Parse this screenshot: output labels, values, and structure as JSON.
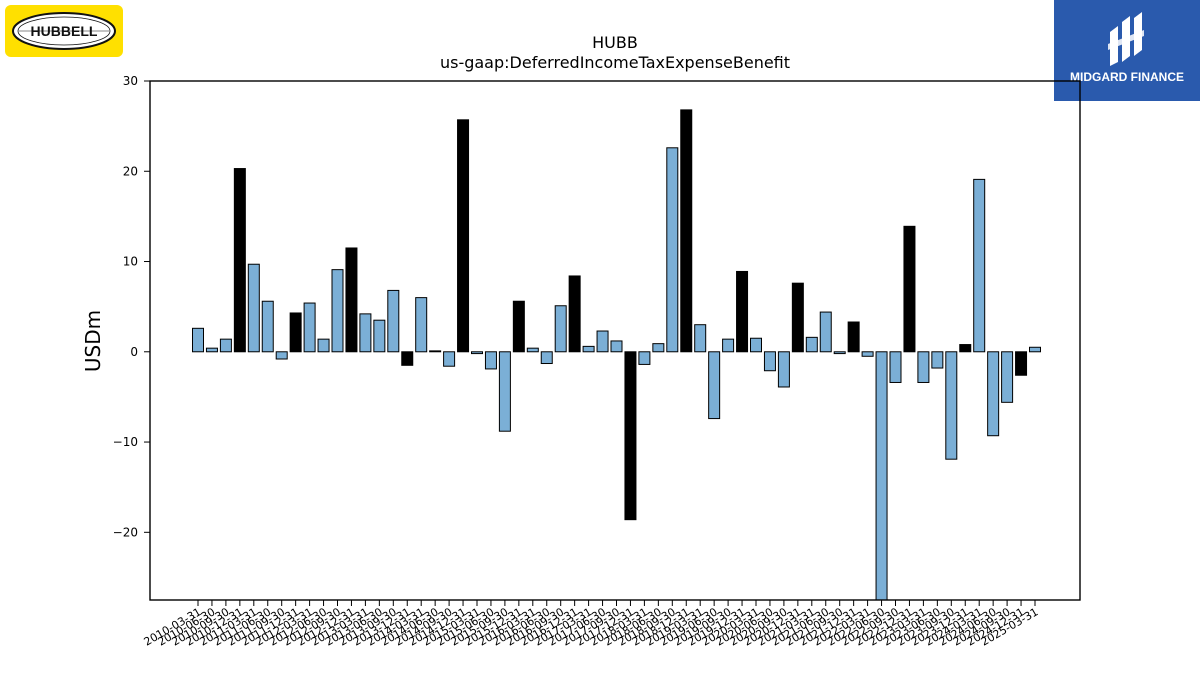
{
  "logos": {
    "left": {
      "text": "HUBBELL",
      "icon": "hubbell-oval-globe-logo",
      "bg_color": "#ffe000"
    },
    "right": {
      "text": "MIDGARD FINANCE",
      "icon": "midgard-rune-logo",
      "bg_color": "#2a5aad"
    }
  },
  "chart_data": {
    "type": "bar",
    "title": "HUBB",
    "subtitle": "us-gaap:DeferredIncomeTaxExpenseBenefit",
    "xlabel": "",
    "ylabel": "USDm",
    "ylim": [
      -27.5,
      30
    ],
    "yticks": [
      -20,
      -10,
      0,
      10,
      20,
      30
    ],
    "grid": false,
    "colors": {
      "quarter": "#7bafd6",
      "year_end": "#000000",
      "edge": "#000000"
    },
    "categories": [
      "2010-03-31",
      "2010-06-30",
      "2010-09-30",
      "2010-12-31",
      "2011-03-31",
      "2011-06-30",
      "2011-09-30",
      "2011-12-31",
      "2012-03-31",
      "2012-06-30",
      "2012-09-30",
      "2012-12-31",
      "2013-03-31",
      "2013-06-30",
      "2013-09-30",
      "2013-12-31",
      "2014-03-31",
      "2014-06-30",
      "2014-09-30",
      "2014-12-31",
      "2015-03-31",
      "2015-06-30",
      "2015-09-30",
      "2015-12-31",
      "2016-03-31",
      "2016-06-30",
      "2016-09-30",
      "2016-12-31",
      "2017-03-31",
      "2017-06-30",
      "2017-09-30",
      "2017-12-31",
      "2018-03-31",
      "2018-06-30",
      "2018-09-30",
      "2018-12-31",
      "2019-03-31",
      "2019-06-30",
      "2019-09-30",
      "2019-12-31",
      "2020-03-31",
      "2020-06-30",
      "2020-09-30",
      "2020-12-31",
      "2021-03-31",
      "2021-06-30",
      "2021-09-30",
      "2021-12-31",
      "2022-03-31",
      "2022-06-30",
      "2022-09-30",
      "2022-12-31",
      "2023-03-31",
      "2023-06-30",
      "2023-09-30",
      "2023-12-31",
      "2024-03-31",
      "2024-06-30",
      "2024-09-30",
      "2024-12-31",
      "2025-03-31"
    ],
    "tick_labels": [
      "2010-03-31",
      "2010-06-30",
      "2010-09-30",
      "2010-12-31",
      "2011-03-31",
      "2011-06-30",
      "2011-09-30",
      "2011-12-31",
      "2012-03-31",
      "2012-06-30",
      "2012-09-30",
      "2012-12-31",
      "2013-03-31",
      "2013-06-30",
      "2013-09-30",
      "2013-12-31",
      "2014-03-31",
      "2014-06-30",
      "2014-09-30",
      "2014-12-31",
      "2015-03-31",
      "2015-06-30",
      "2015-09-30",
      "2015-12-31",
      "2016-03-31",
      "2016-06-30",
      "2016-09-30",
      "2016-12-31",
      "2017-03-31",
      "2017-06-30",
      "2017-09-30",
      "2017-12-31",
      "2018-03-31",
      "2018-06-30",
      "2018-09-30",
      "2018-12-31",
      "2019-03-31",
      "2019-06-30",
      "2019-09-30",
      "2019-12-31",
      "2020-03-31",
      "2020-06-30",
      "2020-09-30",
      "2020-12-31",
      "2021-03-31",
      "2021-06-30",
      "2021-09-30",
      "2021-12-31",
      "2022-03-31",
      "2022-06-30",
      "2022-09-30",
      "2022-12-31",
      "2023-03-31",
      "2023-06-30",
      "2023-09-30",
      "2023-12-31",
      "2024-03-31",
      "2024-06-30",
      "2024-09-30",
      "2024-12-31",
      "2025-03-31"
    ],
    "values": [
      2.6,
      0.4,
      1.4,
      20.3,
      9.7,
      5.6,
      -0.8,
      4.3,
      5.4,
      1.4,
      9.1,
      11.5,
      4.2,
      3.5,
      6.8,
      -1.5,
      6.0,
      0.1,
      -1.6,
      25.7,
      -0.2,
      -1.9,
      -8.8,
      5.6,
      0.4,
      -1.3,
      5.1,
      8.4,
      0.6,
      2.3,
      1.2,
      -18.6,
      -1.4,
      0.9,
      22.6,
      26.8,
      3.0,
      -7.4,
      1.4,
      8.9,
      1.5,
      -2.1,
      -3.9,
      7.6,
      1.6,
      4.4,
      -0.2,
      3.3,
      -0.5,
      -27.5,
      -3.4,
      13.9,
      -3.4,
      -1.8,
      -11.9,
      0.8,
      19.1,
      -9.3,
      -5.6,
      -2.6,
      0.5
    ],
    "year_end": [
      false,
      false,
      false,
      true,
      false,
      false,
      false,
      true,
      false,
      false,
      false,
      true,
      false,
      false,
      false,
      true,
      false,
      false,
      false,
      true,
      false,
      false,
      false,
      true,
      false,
      false,
      false,
      true,
      false,
      false,
      false,
      true,
      false,
      false,
      false,
      true,
      false,
      false,
      false,
      true,
      false,
      false,
      false,
      true,
      false,
      false,
      false,
      true,
      false,
      false,
      false,
      true,
      false,
      false,
      false,
      true,
      false,
      false,
      false,
      true,
      false
    ]
  }
}
